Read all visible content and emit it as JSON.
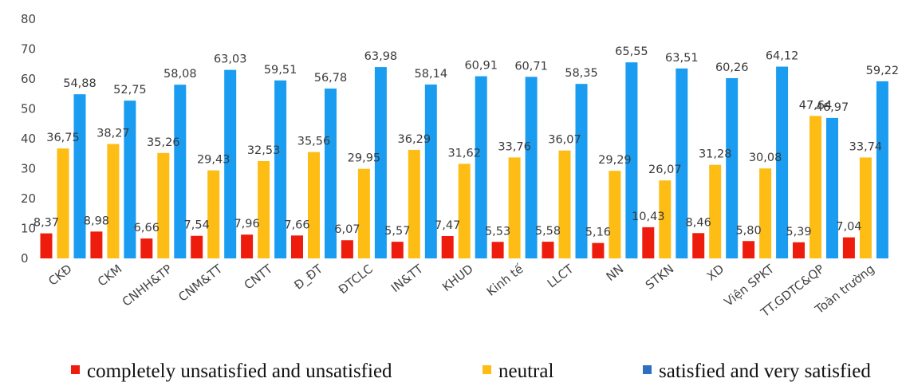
{
  "colors": {
    "unsatisfied": "#ee1c0c",
    "neutral": "#fdbd15",
    "satisfied": "#1a9cf0",
    "legend_satisfied": "#2e6fc0"
  },
  "legend": {
    "unsatisfied": "completely unsatisfied and unsatisfied",
    "neutral": "neutral",
    "satisfied": "satisfied and very satisfied"
  },
  "chart_data": {
    "type": "bar",
    "title": "",
    "xlabel": "",
    "ylabel": "",
    "ylim": [
      0,
      80
    ],
    "yticks": [
      0,
      10,
      20,
      30,
      40,
      50,
      60,
      70,
      80
    ],
    "grid": false,
    "legend_position": "bottom",
    "categories": [
      "CKĐ",
      "CKM",
      "CNHH&TP",
      "CNM&TT",
      "CNTT",
      "Đ_ĐT",
      "ĐTCLC",
      "IN&TT",
      "KHUD",
      "Kinh tế",
      "LLCT",
      "NN",
      "STKN",
      "XD",
      "Viện SPKT",
      "TT.GDTC&QP",
      "Toàn trường"
    ],
    "series": [
      {
        "name": "completely unsatisfied and unsatisfied",
        "values": [
          8.37,
          8.98,
          6.66,
          7.54,
          7.96,
          7.66,
          6.07,
          5.57,
          7.47,
          5.53,
          5.58,
          5.16,
          10.43,
          8.46,
          5.8,
          5.39,
          7.04
        ],
        "labels": [
          "8,37",
          "8,98",
          "6,66",
          "7,54",
          "7,96",
          "7,66",
          "6,07",
          "5,57",
          "7,47",
          "5,53",
          "5,58",
          "5,16",
          "10,43",
          "8,46",
          "5,80",
          "5,39",
          "7,04"
        ]
      },
      {
        "name": "neutral",
        "values": [
          36.75,
          38.27,
          35.26,
          29.43,
          32.53,
          35.56,
          29.95,
          36.29,
          31.62,
          33.76,
          36.07,
          29.29,
          26.07,
          31.28,
          30.08,
          47.64,
          33.74
        ],
        "labels": [
          "36,75",
          "38,27",
          "35,26",
          "29,43",
          "32,53",
          "35,56",
          "29,95",
          "36,29",
          "31,62",
          "33,76",
          "36,07",
          "29,29",
          "26,07",
          "31,28",
          "30,08",
          "47,64",
          "33,74"
        ]
      },
      {
        "name": "satisfied and very satisfied",
        "values": [
          54.88,
          52.75,
          58.08,
          63.03,
          59.51,
          56.78,
          63.98,
          58.14,
          60.91,
          60.71,
          58.35,
          65.55,
          63.51,
          60.26,
          64.12,
          46.97,
          59.22
        ],
        "labels": [
          "54,88",
          "52,75",
          "58,08",
          "63,03",
          "59,51",
          "56,78",
          "63,98",
          "58,14",
          "60,91",
          "60,71",
          "58,35",
          "65,55",
          "63,51",
          "60,26",
          "64,12",
          "46,97",
          "59,22"
        ]
      }
    ]
  }
}
